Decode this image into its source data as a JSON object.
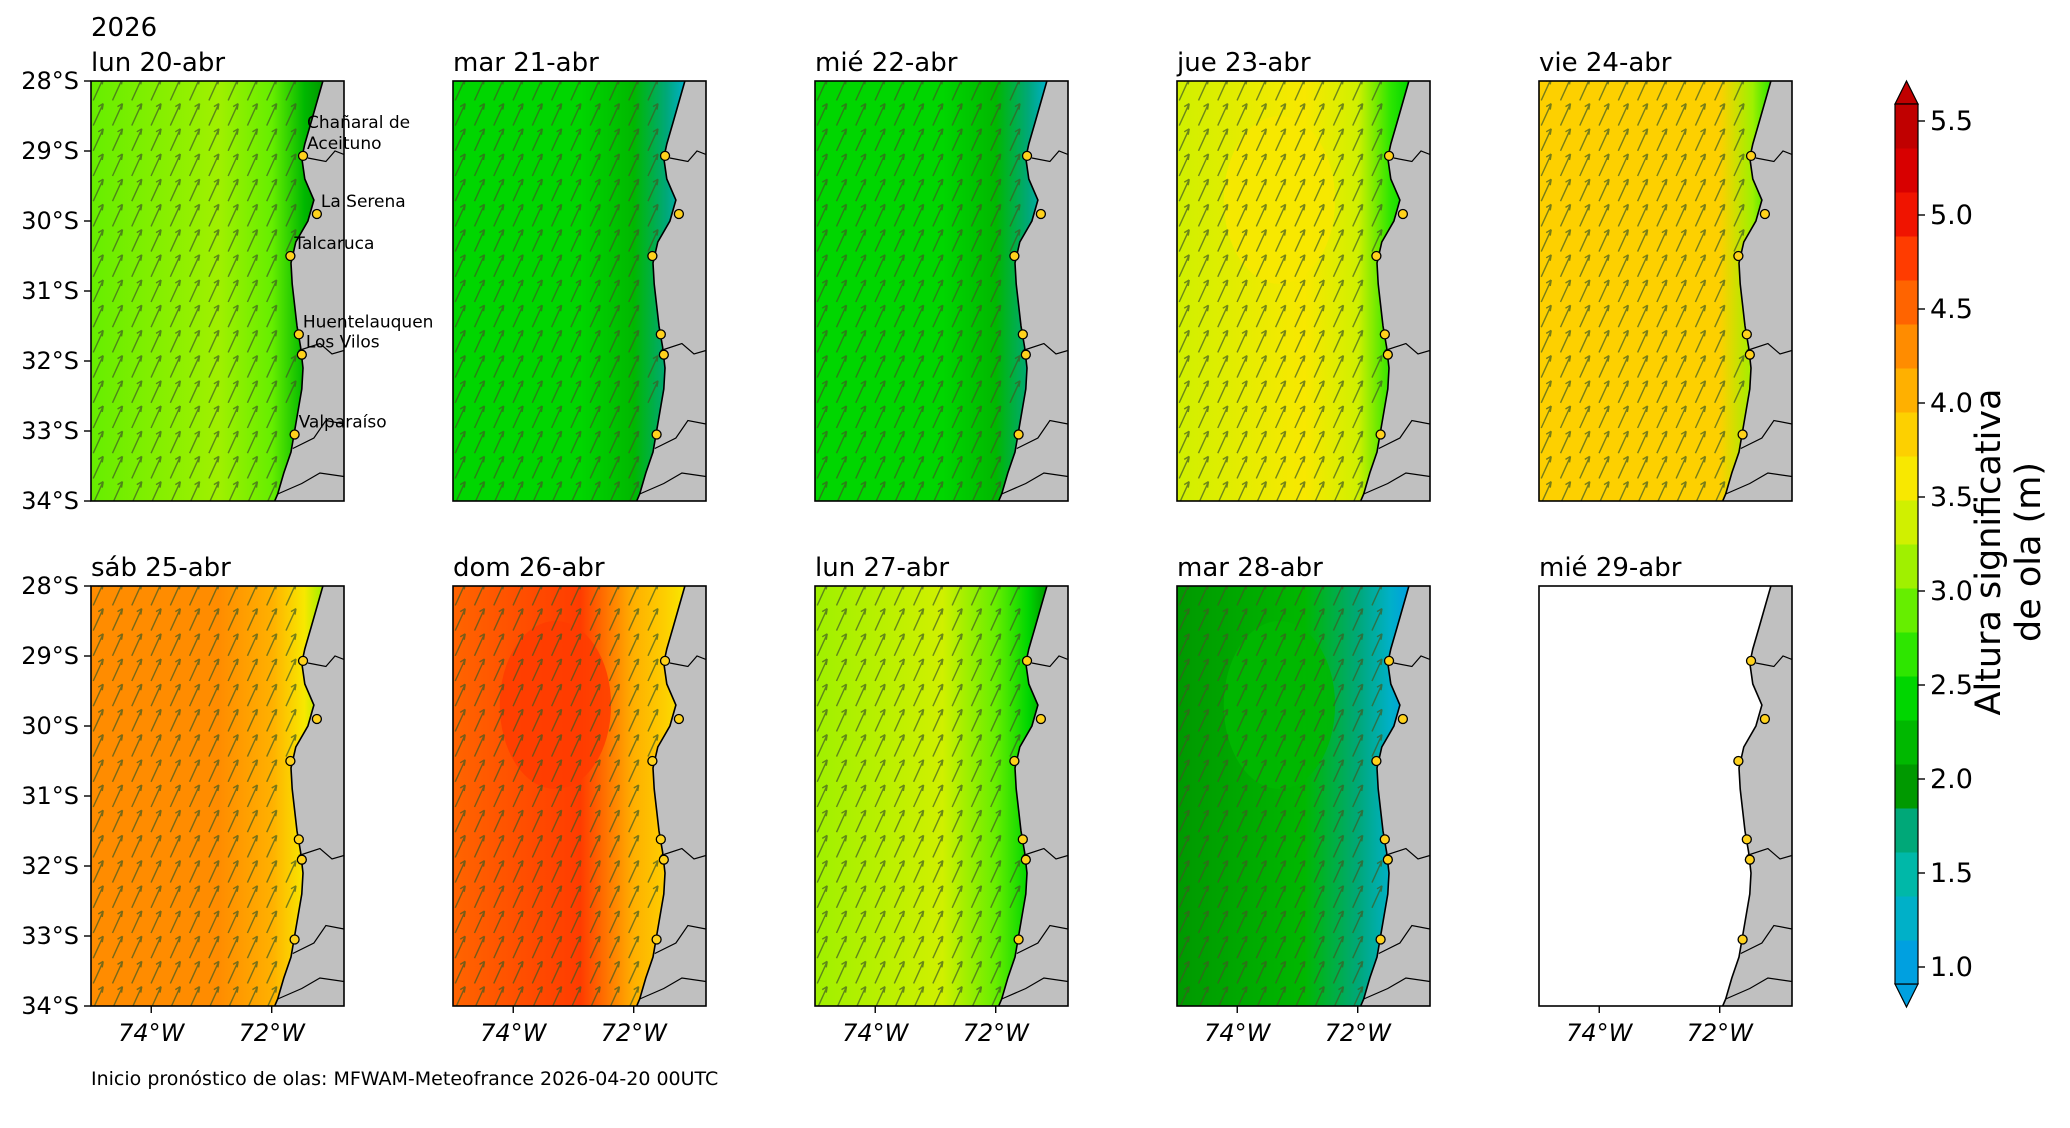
{
  "figure": {
    "year": "2026",
    "footnote": "Inicio pronóstico de olas: MFWAM-Meteofrance 2026-04-20 00UTC"
  },
  "chart_data": {
    "type": "heatmap",
    "description_values": "Small-multiple maps of forecast significant wave height off central Chile with direction arrows",
    "lat_ticks": [
      "28°S",
      "29°S",
      "30°S",
      "31°S",
      "32°S",
      "33°S",
      "34°S"
    ],
    "lon_ticks": [
      "74°W",
      "72°W"
    ],
    "lat_range": [
      -34,
      -28
    ],
    "lon_range": [
      -75.0,
      -70.8
    ],
    "colorbar": {
      "label": "Altura significativa\nde ola (m)",
      "label_lines": [
        "Altura significativa",
        "de ola (m)"
      ],
      "ticks": [
        "1.0",
        "1.5",
        "2.0",
        "2.5",
        "3.0",
        "3.5",
        "4.0",
        "4.5",
        "5.0",
        "5.5"
      ],
      "min": 1.0,
      "max": 5.5,
      "colors": [
        "#00a0e0",
        "#00b0c8",
        "#00b8a8",
        "#00a878",
        "#009900",
        "#00b800",
        "#00d600",
        "#2ee600",
        "#66ee00",
        "#a0f000",
        "#d0f000",
        "#f8e800",
        "#fdd000",
        "#ffb000",
        "#ff8c00",
        "#ff6400",
        "#ff3c00",
        "#f01400",
        "#d80000",
        "#c00000"
      ]
    },
    "locations": [
      {
        "name": "Chañaral de\nAceituno",
        "lines": [
          "Chañaral de",
          "Aceituno"
        ],
        "lat": -29.07,
        "lon": -71.48
      },
      {
        "name": "La Serena",
        "lines": [
          "La Serena"
        ],
        "lat": -29.9,
        "lon": -71.25
      },
      {
        "name": "Talcaruca",
        "lines": [
          "Talcaruca"
        ],
        "lat": -30.5,
        "lon": -71.69
      },
      {
        "name": "Huentelauquen",
        "lines": [
          "Huentelauquen"
        ],
        "lat": -31.62,
        "lon": -71.55
      },
      {
        "name": "Los Vilos",
        "lines": [
          "Los Vilos"
        ],
        "lat": -31.91,
        "lon": -71.5
      },
      {
        "name": "Valparaíso",
        "lines": [
          "Valparaíso"
        ],
        "lat": -33.05,
        "lon": -71.62
      }
    ],
    "panels": [
      {
        "title": "lun 20-abr",
        "hs_offshore": 3.0,
        "hs_min": 2.9,
        "hs_max": 3.1,
        "show_labels": true
      },
      {
        "title": "mar 21-abr",
        "hs_offshore": 2.4,
        "hs_min": 2.2,
        "hs_max": 2.5
      },
      {
        "title": "mié 22-abr",
        "hs_offshore": 2.4,
        "hs_min": 2.2,
        "hs_max": 2.5
      },
      {
        "title": "jue 23-abr",
        "hs_offshore": 3.4,
        "hs_min": 3.3,
        "hs_max": 3.6
      },
      {
        "title": "vie 24-abr",
        "hs_offshore": 3.8,
        "hs_min": 3.7,
        "hs_max": 3.9
      },
      {
        "title": "sáb 25-abr",
        "hs_offshore": 4.2,
        "hs_min": 4.0,
        "hs_max": 4.3
      },
      {
        "title": "dom 26-abr",
        "hs_offshore": 4.5,
        "hs_min": 4.0,
        "hs_max": 4.8
      },
      {
        "title": "lun 27-abr",
        "hs_offshore": 3.1,
        "hs_min": 3.0,
        "hs_max": 3.3
      },
      {
        "title": "mar 28-abr",
        "hs_offshore": 2.0,
        "hs_min": 1.8,
        "hs_max": 2.2
      },
      {
        "title": "mié 29-abr",
        "hs_offshore": null,
        "hs_min": null,
        "hs_max": null
      }
    ]
  }
}
